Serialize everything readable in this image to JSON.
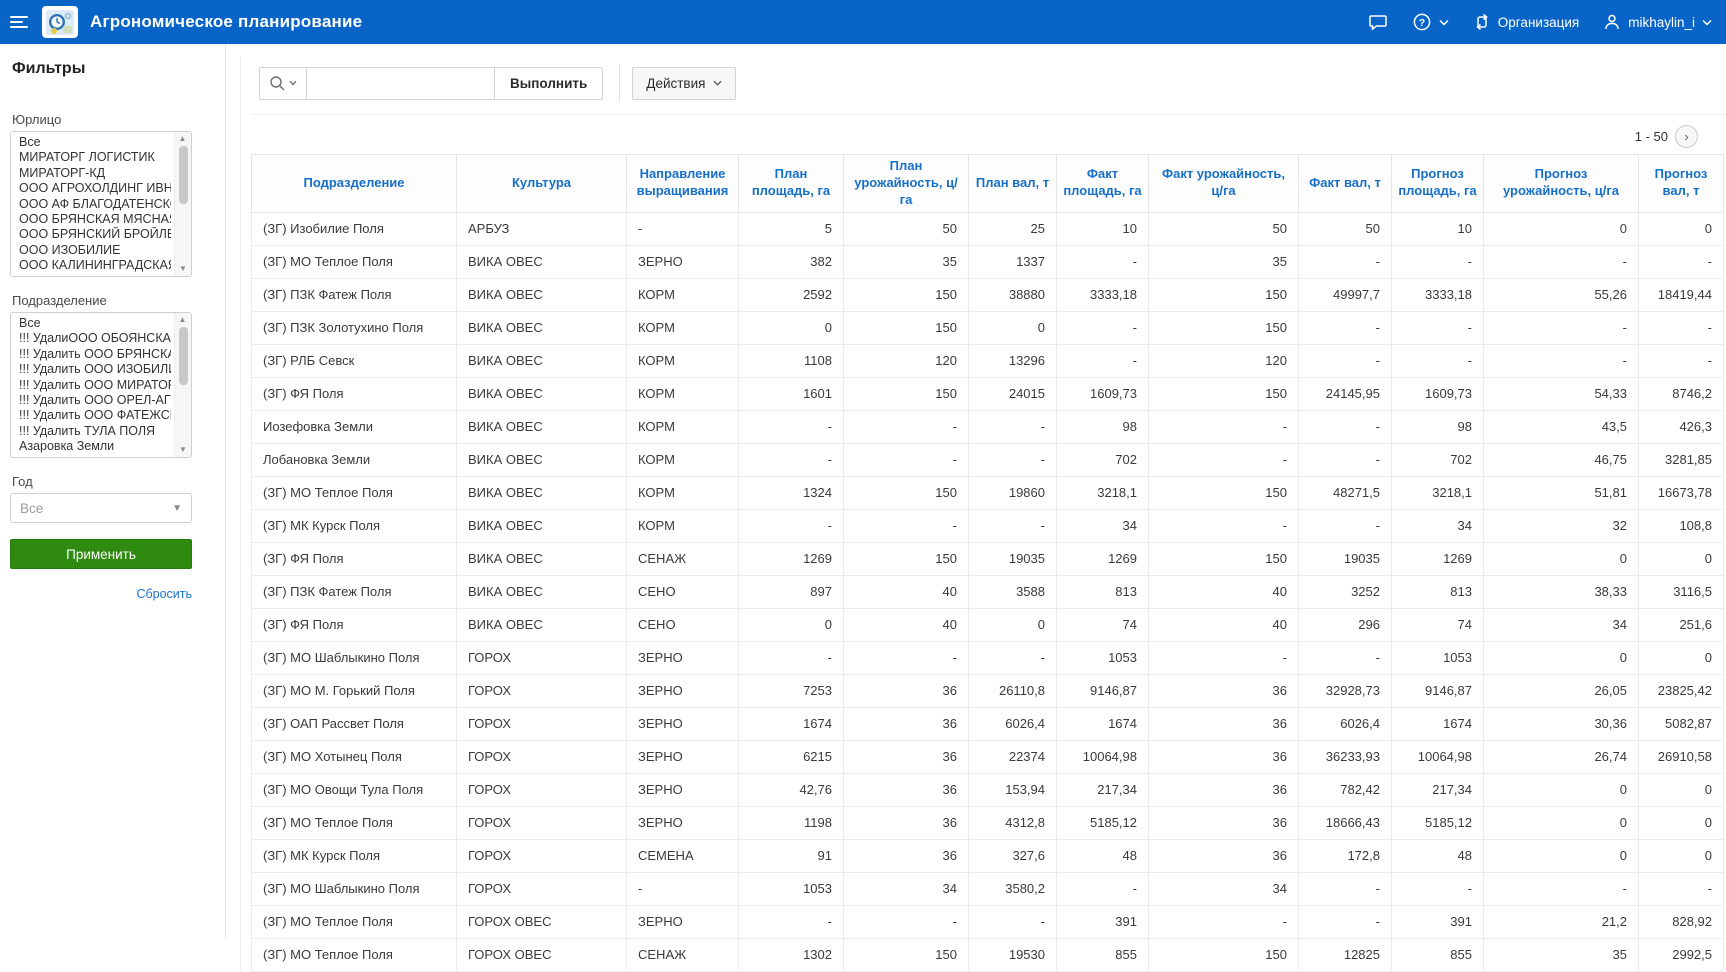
{
  "app": {
    "title": "Агрономическое планирование"
  },
  "topnav": {
    "organization_label": "Организация",
    "username": "mikhaylin_i"
  },
  "glyphs": {
    "scroll_up": "▲",
    "scroll_down": "▼",
    "caret_down": "▼",
    "next_page": "›"
  },
  "sidebar": {
    "title": "Фильтры",
    "filters": [
      {
        "id": "yurlico",
        "label": "Юрлицо",
        "type": "multiselect",
        "options": [
          "Все",
          "МИРАТОРГ ЛОГИСТИК",
          "МИРАТОРГ-КД",
          "ООО АГРОХОЛДИНГ ИВНЯНСКИ",
          "ООО АФ БЛАГОДАТЕНСКОЕ",
          "ООО БРЯНСКАЯ МЯСНАЯ КОМП",
          "ООО БРЯНСКИЙ БРОЙЛЕР",
          "ООО ИЗОБИЛИЕ",
          "ООО КАЛИНИНГРАДСКАЯ МЯСН"
        ]
      },
      {
        "id": "podrazdelenie",
        "label": "Подразделение",
        "type": "multiselect",
        "options": [
          "Все",
          "!!! УдалиООО ОБОЯНСКАЯ ЗЕРНО",
          "!!! Удалить ООО БРЯНСКАЯ МЯСН",
          "!!! Удалить ООО ИЗОБИЛИЕ",
          "!!! Удалить ООО МИРАТОРГ-ОРЕ",
          "!!! Удалить ООО ОРЕЛ-АГРО-ПРО",
          "!!! Удалить ООО ФАТЕЖСКАЯ ЯГН",
          "!!! Удалить ТУЛА ПОЛЯ",
          "Азаровка Земли"
        ]
      },
      {
        "id": "god",
        "label": "Год",
        "type": "select",
        "value": "Все"
      }
    ],
    "apply_label": "Применить",
    "reset_label": "Сбросить"
  },
  "toolbar": {
    "search_value": "",
    "execute_label": "Выполнить",
    "actions_label": "Действия"
  },
  "report": {
    "pagination_label": "1 - 50",
    "columns": [
      "Подразделение",
      "Культура",
      "Направление выращивания",
      "План площадь, га",
      "План урожайность, ц/га",
      "План вал, т",
      "Факт площадь, га",
      "Факт урожайность, ц/га",
      "Факт вал, т",
      "Прогноз площадь, га",
      "Прогноз урожайность, ц/га",
      "Прогноз вал, т"
    ],
    "rows": [
      [
        "(ЗГ) Изобилие Поля",
        "АРБУЗ",
        "-",
        "5",
        "50",
        "25",
        "10",
        "50",
        "50",
        "10",
        "0",
        "0"
      ],
      [
        "(ЗГ) МО Теплое Поля",
        "ВИКА ОВЕС",
        "ЗЕРНО",
        "382",
        "35",
        "1337",
        "-",
        "35",
        "-",
        "-",
        "-",
        "-"
      ],
      [
        "(ЗГ) ПЗК Фатеж Поля",
        "ВИКА ОВЕС",
        "КОРМ",
        "2592",
        "150",
        "38880",
        "3333,18",
        "150",
        "49997,7",
        "3333,18",
        "55,26",
        "18419,44"
      ],
      [
        "(ЗГ) ПЗК Золотухино Поля",
        "ВИКА ОВЕС",
        "КОРМ",
        "0",
        "150",
        "0",
        "-",
        "150",
        "-",
        "-",
        "-",
        "-"
      ],
      [
        "(ЗГ) РЛБ Севск",
        "ВИКА ОВЕС",
        "КОРМ",
        "1108",
        "120",
        "13296",
        "-",
        "120",
        "-",
        "-",
        "-",
        "-"
      ],
      [
        "(ЗГ) ФЯ Поля",
        "ВИКА ОВЕС",
        "КОРМ",
        "1601",
        "150",
        "24015",
        "1609,73",
        "150",
        "24145,95",
        "1609,73",
        "54,33",
        "8746,2"
      ],
      [
        "Иозефовка Земли",
        "ВИКА ОВЕС",
        "КОРМ",
        "-",
        "-",
        "-",
        "98",
        "-",
        "-",
        "98",
        "43,5",
        "426,3"
      ],
      [
        "Лобановка Земли",
        "ВИКА ОВЕС",
        "КОРМ",
        "-",
        "-",
        "-",
        "702",
        "-",
        "-",
        "702",
        "46,75",
        "3281,85"
      ],
      [
        "(ЗГ) МО Теплое Поля",
        "ВИКА ОВЕС",
        "КОРМ",
        "1324",
        "150",
        "19860",
        "3218,1",
        "150",
        "48271,5",
        "3218,1",
        "51,81",
        "16673,78"
      ],
      [
        "(ЗГ) МК Курск Поля",
        "ВИКА ОВЕС",
        "КОРМ",
        "-",
        "-",
        "-",
        "34",
        "-",
        "-",
        "34",
        "32",
        "108,8"
      ],
      [
        "(ЗГ) ФЯ Поля",
        "ВИКА ОВЕС",
        "СЕНАЖ",
        "1269",
        "150",
        "19035",
        "1269",
        "150",
        "19035",
        "1269",
        "0",
        "0"
      ],
      [
        "(ЗГ) ПЗК Фатеж Поля",
        "ВИКА ОВЕС",
        "СЕНО",
        "897",
        "40",
        "3588",
        "813",
        "40",
        "3252",
        "813",
        "38,33",
        "3116,5"
      ],
      [
        "(ЗГ) ФЯ Поля",
        "ВИКА ОВЕС",
        "СЕНО",
        "0",
        "40",
        "0",
        "74",
        "40",
        "296",
        "74",
        "34",
        "251,6"
      ],
      [
        "(ЗГ) МО Шаблыкино Поля",
        "ГОРОХ",
        "ЗЕРНО",
        "-",
        "-",
        "-",
        "1053",
        "-",
        "-",
        "1053",
        "0",
        "0"
      ],
      [
        "(ЗГ) МО М. Горький Поля",
        "ГОРОХ",
        "ЗЕРНО",
        "7253",
        "36",
        "26110,8",
        "9146,87",
        "36",
        "32928,73",
        "9146,87",
        "26,05",
        "23825,42"
      ],
      [
        "(ЗГ) ОАП Рассвет Поля",
        "ГОРОХ",
        "ЗЕРНО",
        "1674",
        "36",
        "6026,4",
        "1674",
        "36",
        "6026,4",
        "1674",
        "30,36",
        "5082,87"
      ],
      [
        "(ЗГ) МО Хотынец Поля",
        "ГОРОХ",
        "ЗЕРНО",
        "6215",
        "36",
        "22374",
        "10064,98",
        "36",
        "36233,93",
        "10064,98",
        "26,74",
        "26910,58"
      ],
      [
        "(ЗГ) МО Овощи Тула Поля",
        "ГОРОХ",
        "ЗЕРНО",
        "42,76",
        "36",
        "153,94",
        "217,34",
        "36",
        "782,42",
        "217,34",
        "0",
        "0"
      ],
      [
        "(ЗГ) МО Теплое Поля",
        "ГОРОХ",
        "ЗЕРНО",
        "1198",
        "36",
        "4312,8",
        "5185,12",
        "36",
        "18666,43",
        "5185,12",
        "0",
        "0"
      ],
      [
        "(ЗГ) МК Курск Поля",
        "ГОРОХ",
        "СЕМЕНА",
        "91",
        "36",
        "327,6",
        "48",
        "36",
        "172,8",
        "48",
        "0",
        "0"
      ],
      [
        "(ЗГ) МО Шаблыкино Поля",
        "ГОРОХ",
        "-",
        "1053",
        "34",
        "3580,2",
        "-",
        "34",
        "-",
        "-",
        "-",
        "-"
      ],
      [
        "(ЗГ) МО Теплое Поля",
        "ГОРОХ ОВЕС",
        "ЗЕРНО",
        "-",
        "-",
        "-",
        "391",
        "-",
        "-",
        "391",
        "21,2",
        "828,92"
      ],
      [
        "(ЗГ) МО Теплое Поля",
        "ГОРОХ ОВЕС",
        "СЕНАЖ",
        "1302",
        "150",
        "19530",
        "855",
        "150",
        "12825",
        "855",
        "35",
        "2992,5"
      ]
    ]
  }
}
